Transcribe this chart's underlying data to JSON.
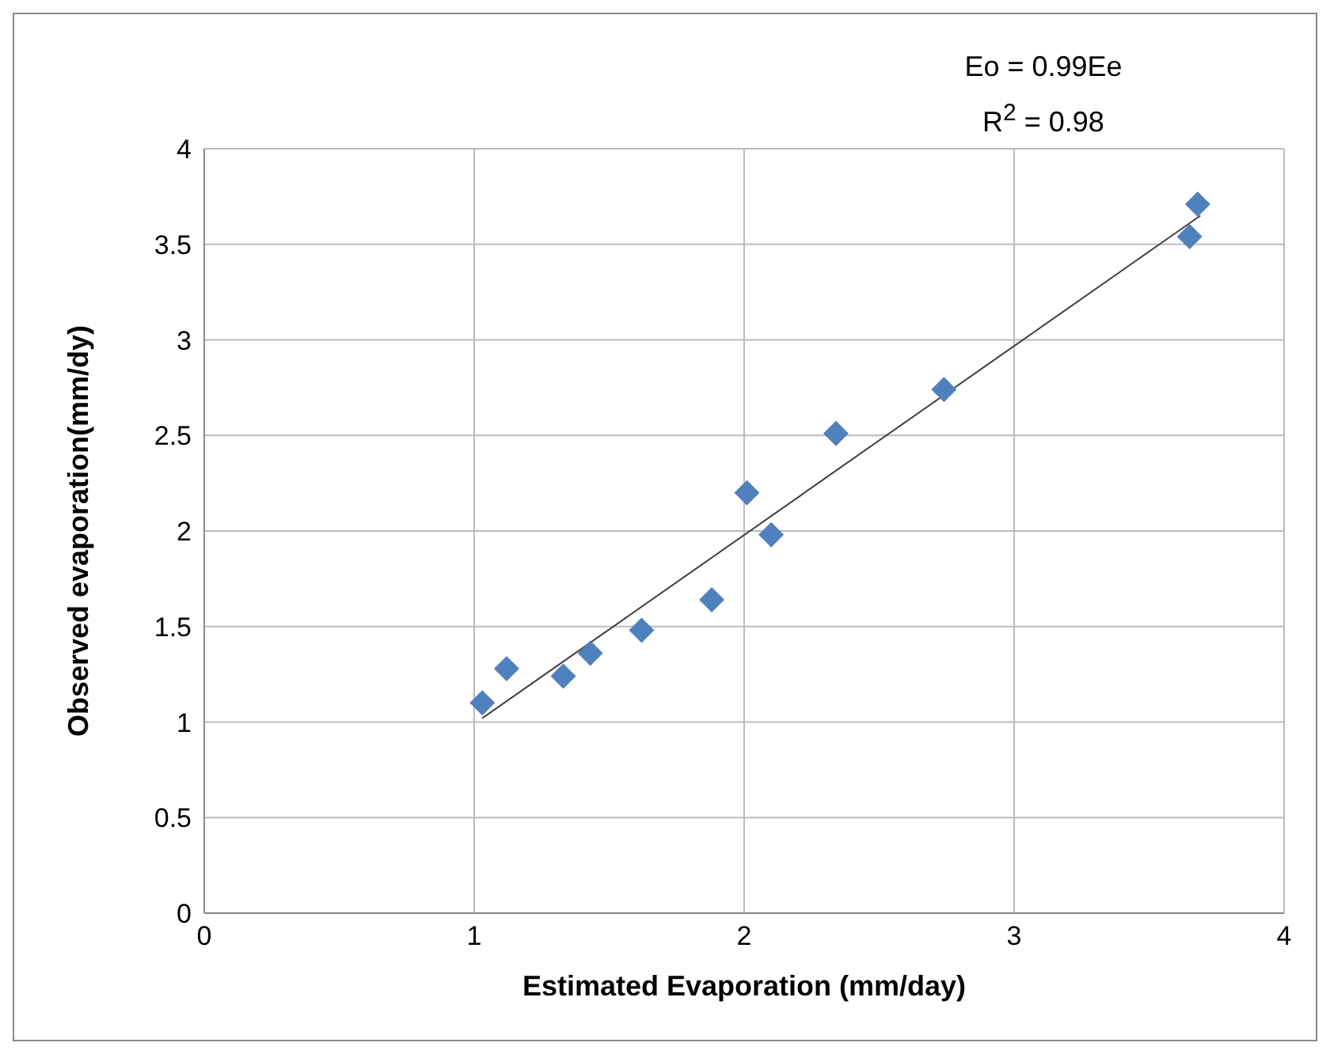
{
  "chart_data": {
    "type": "scatter",
    "xlabel": "Estimated Evaporation (mm/day)",
    "ylabel": "Observed evaporation(mm/dy)",
    "annotations": [
      "Eo = 0.99Ee",
      "R$^{2}$ = 0.98"
    ],
    "xlim": [
      0,
      4
    ],
    "xticks": [
      0,
      1,
      2,
      3,
      4
    ],
    "ylim": [
      0,
      4
    ],
    "yticks": [
      0,
      0.5,
      1,
      1.5,
      2,
      2.5,
      3,
      3.5,
      4
    ],
    "grid": true,
    "marker": "diamond",
    "series": [
      {
        "color": "#4f81bd",
        "x": [
          1.03,
          1.12,
          1.33,
          1.43,
          1.62,
          1.88,
          2.01,
          2.1,
          2.34,
          2.74,
          3.65,
          3.68
        ],
        "values": [
          1.1,
          1.28,
          1.24,
          1.36,
          1.48,
          1.64,
          2.2,
          1.98,
          2.51,
          2.74,
          3.54,
          3.71
        ]
      },
      {
        "type": "line",
        "marker": "none",
        "color": "#404040",
        "x": [
          1.03,
          3.69
        ],
        "values": [
          1.02,
          3.65
        ]
      }
    ]
  }
}
